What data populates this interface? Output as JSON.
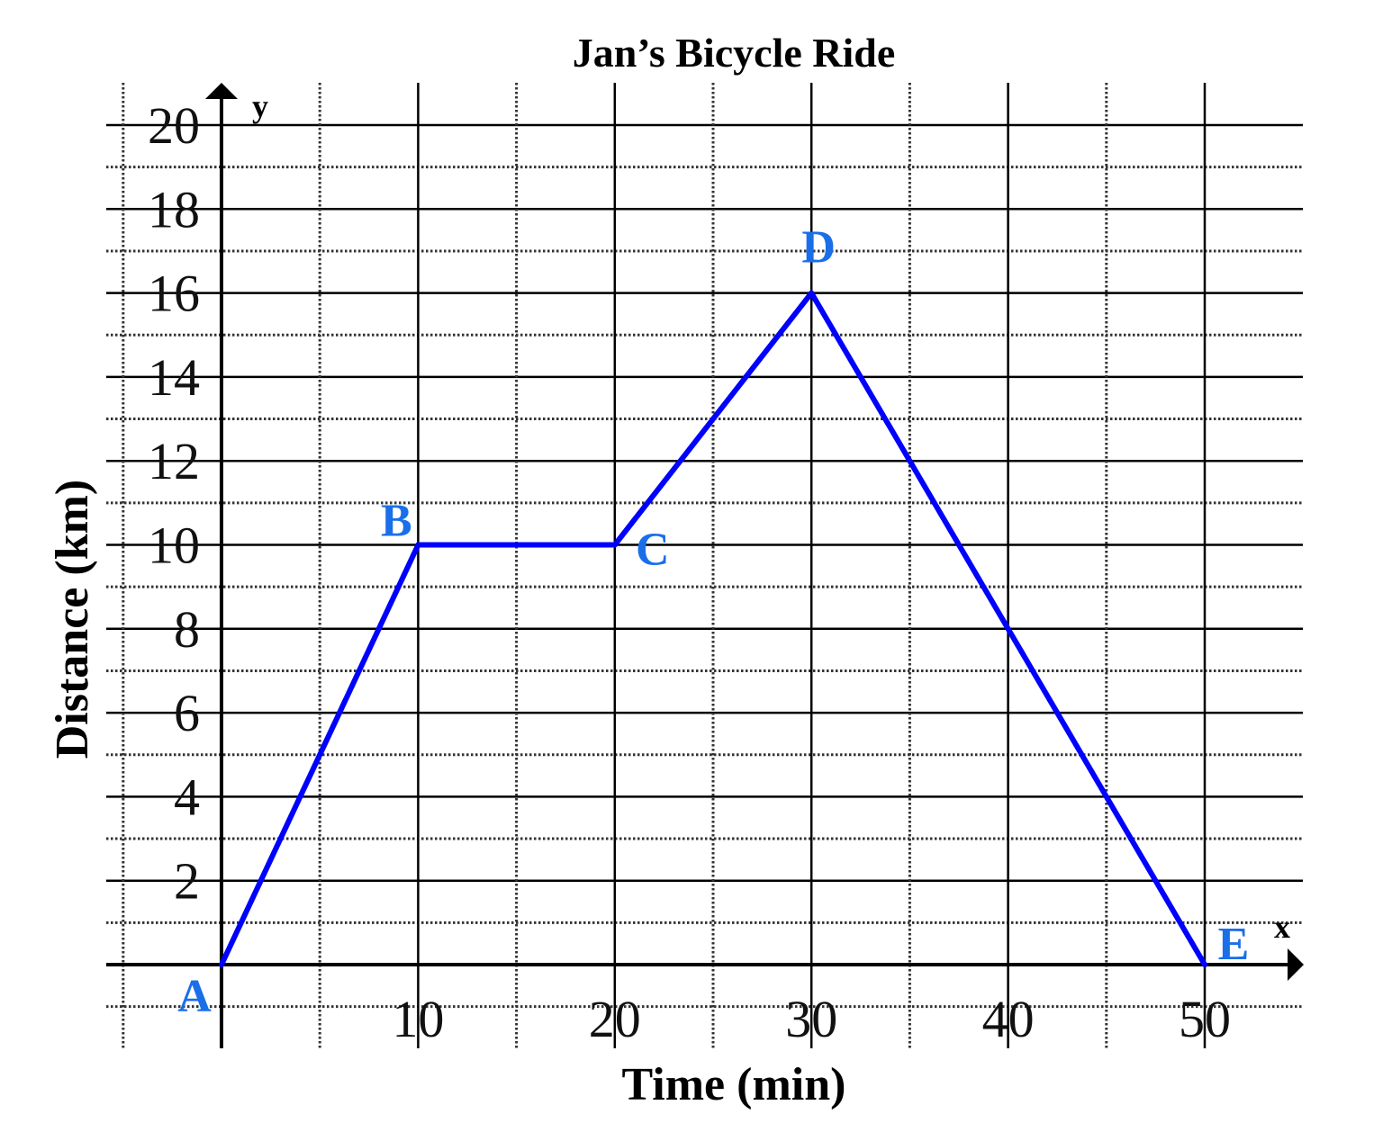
{
  "chart_data": {
    "type": "line",
    "title": "Jan’s Bicycle Ride",
    "xlabel": "Time (min)",
    "ylabel": "Distance (km)",
    "x_axis_letter": "x",
    "y_axis_letter": "y",
    "xlim": [
      -5,
      55
    ],
    "ylim": [
      -1,
      20
    ],
    "x_ticks": [
      10,
      20,
      30,
      40,
      50
    ],
    "y_ticks": [
      2,
      4,
      6,
      8,
      10,
      12,
      14,
      16,
      18,
      20
    ],
    "grid": true,
    "series": [
      {
        "name": "Jan’s ride",
        "color": "#0000ff",
        "points": [
          {
            "label": "A",
            "x": 0,
            "y": 0
          },
          {
            "label": "B",
            "x": 10,
            "y": 10
          },
          {
            "label": "C",
            "x": 20,
            "y": 10
          },
          {
            "label": "D",
            "x": 30,
            "y": 16
          },
          {
            "label": "E",
            "x": 50,
            "y": 0
          }
        ]
      }
    ],
    "label_color": "#1a6fe8"
  }
}
